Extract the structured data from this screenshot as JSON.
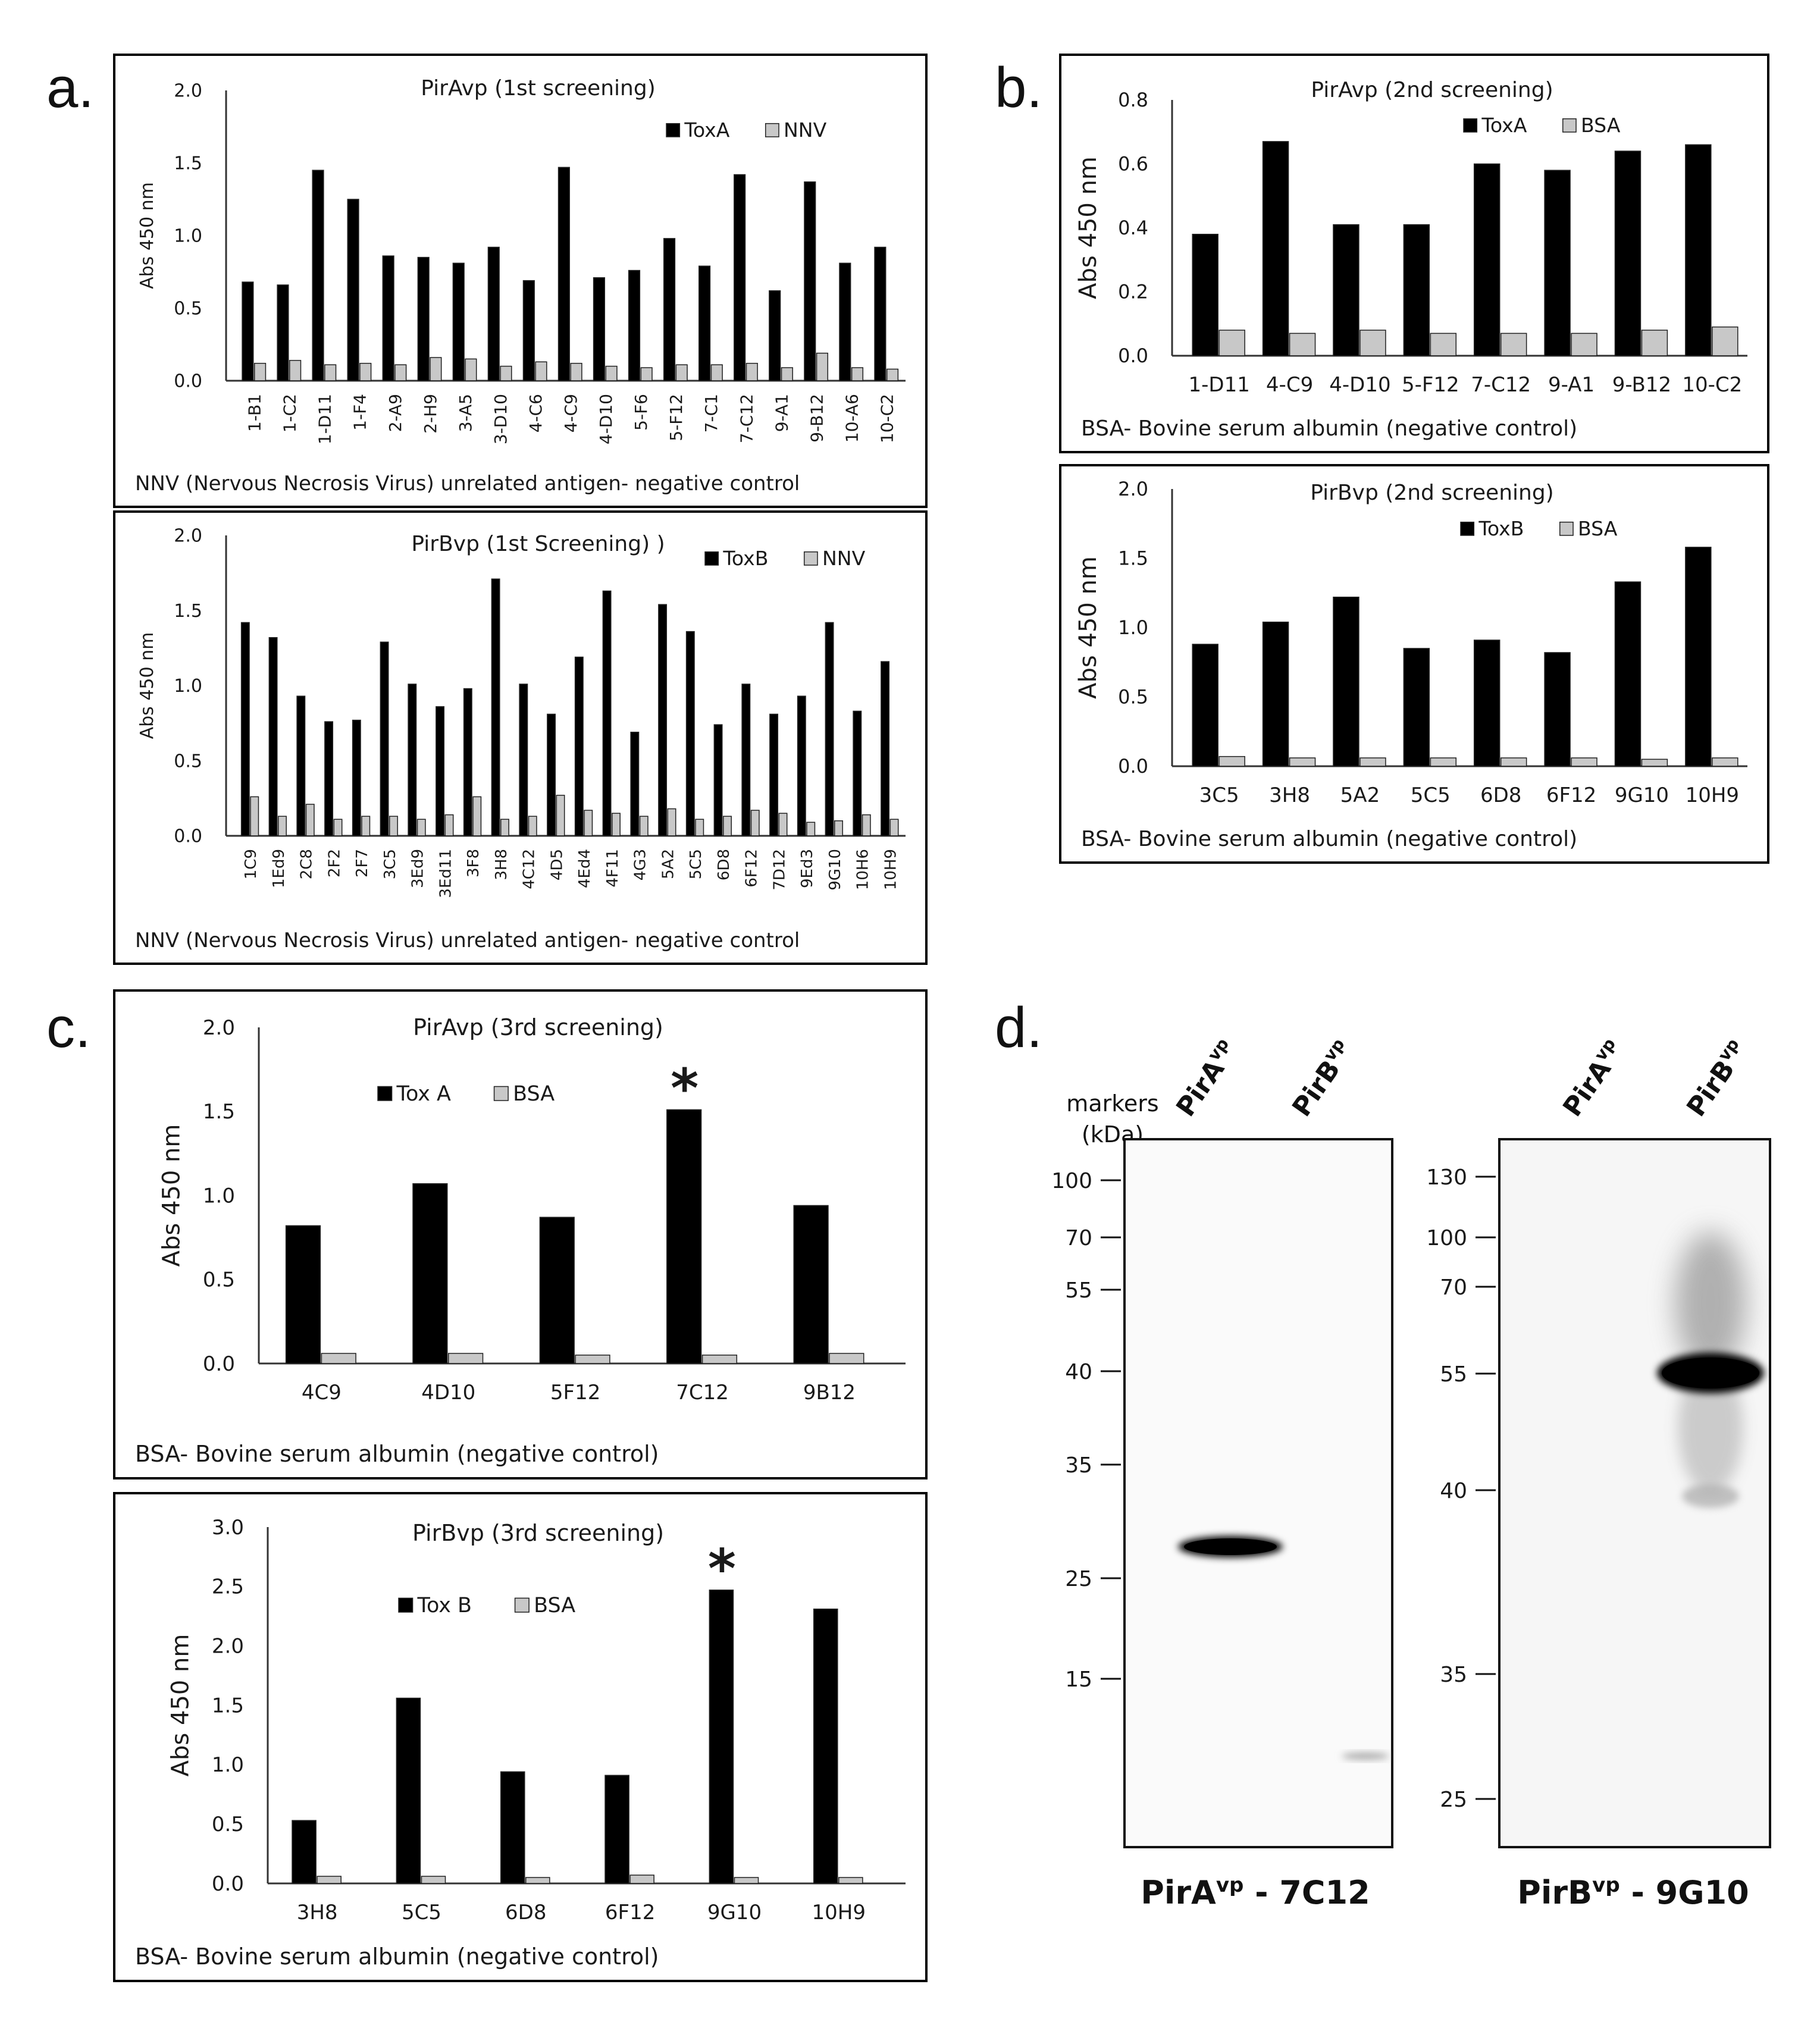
{
  "panel_labels": {
    "a": "a.",
    "b": "b.",
    "c": "c.",
    "d": "d."
  },
  "colors": {
    "primary": "#000000",
    "control": "#c8c8c8",
    "frame": "#000000",
    "text": "#1a1a1a"
  },
  "chart_data": [
    {
      "id": "a1",
      "panel": "a",
      "type": "bar",
      "title": "PirAvp (1st screening)",
      "ylabel": "Abs 450 nm",
      "xlabel": "",
      "ylim": [
        0,
        2.0
      ],
      "yticks": [
        "0.0",
        "0.5",
        "1.0",
        "1.5",
        "2.0"
      ],
      "categories": [
        "1-B1",
        "1-C2",
        "1-D11",
        "1-F4",
        "2-A9",
        "2-H9",
        "3-A5",
        "3-D10",
        "4-C6",
        "4-C9",
        "4-D10",
        "5-F6",
        "5-F12",
        "7-C1",
        "7-C12",
        "9-A1",
        "9-B12",
        "10-A6",
        "10-C2"
      ],
      "series": [
        {
          "name": "ToxA",
          "values": [
            0.68,
            0.66,
            1.45,
            1.25,
            0.86,
            0.85,
            0.81,
            0.92,
            0.69,
            1.47,
            0.71,
            0.76,
            0.98,
            0.79,
            1.42,
            0.62,
            1.37,
            0.81,
            0.92
          ]
        },
        {
          "name": "NNV",
          "values": [
            0.12,
            0.14,
            0.11,
            0.12,
            0.11,
            0.16,
            0.15,
            0.1,
            0.13,
            0.12,
            0.1,
            0.09,
            0.11,
            0.11,
            0.12,
            0.09,
            0.19,
            0.09,
            0.08
          ]
        }
      ],
      "note": "NNV (Nervous Necrosis Virus) unrelated antigen- negative control"
    },
    {
      "id": "a2",
      "panel": "a",
      "type": "bar",
      "title": "PirBvp (1st Screening) )",
      "ylabel": "Abs 450 nm",
      "xlabel": "",
      "ylim": [
        0,
        2.0
      ],
      "yticks": [
        "0.0",
        "0.5",
        "1.0",
        "1.5",
        "2.0"
      ],
      "categories": [
        "1C9",
        "1Ed9",
        "2C8",
        "2F2",
        "2F7",
        "3C5",
        "3Ed9",
        "3Ed11",
        "3F8",
        "3H8",
        "4C12",
        "4D5",
        "4Ed4",
        "4F11",
        "4G3",
        "5A2",
        "5C5",
        "6D8",
        "6F12",
        "7D12",
        "9Ed3",
        "9G10",
        "10H6",
        "10H9"
      ],
      "series": [
        {
          "name": "ToxB",
          "values": [
            1.42,
            1.32,
            0.93,
            0.76,
            0.77,
            1.29,
            1.01,
            0.86,
            0.98,
            1.71,
            1.01,
            0.81,
            1.19,
            1.63,
            0.69,
            1.54,
            1.36,
            0.74,
            1.01,
            0.81,
            0.93,
            1.42,
            0.83,
            1.16
          ]
        },
        {
          "name": "NNV",
          "values": [
            0.26,
            0.13,
            0.21,
            0.11,
            0.13,
            0.13,
            0.11,
            0.14,
            0.26,
            0.11,
            0.13,
            0.27,
            0.17,
            0.15,
            0.13,
            0.18,
            0.11,
            0.13,
            0.17,
            0.15,
            0.09,
            0.1,
            0.14,
            0.11
          ]
        }
      ],
      "note": "NNV (Nervous Necrosis Virus) unrelated antigen- negative control"
    },
    {
      "id": "b1",
      "panel": "b",
      "type": "bar",
      "title": "PirAvp  (2nd screening)",
      "ylabel": "Abs 450 nm",
      "xlabel": "",
      "ylim": [
        0,
        0.8
      ],
      "yticks": [
        "0.0",
        "0.2",
        "0.4",
        "0.6",
        "0.8"
      ],
      "categories": [
        "1-D11",
        "4-C9",
        "4-D10",
        "5-F12",
        "7-C12",
        "9-A1",
        "9-B12",
        "10-C2"
      ],
      "series": [
        {
          "name": "ToxA",
          "values": [
            0.38,
            0.67,
            0.41,
            0.41,
            0.6,
            0.58,
            0.64,
            0.66
          ]
        },
        {
          "name": "BSA",
          "values": [
            0.08,
            0.07,
            0.08,
            0.07,
            0.07,
            0.07,
            0.08,
            0.09
          ]
        }
      ],
      "note": "BSA- Bovine serum albumin (negative control)"
    },
    {
      "id": "b2",
      "panel": "b",
      "type": "bar",
      "title": "PirBvp  (2nd screening)",
      "ylabel": "Abs 450 nm",
      "xlabel": "",
      "ylim": [
        0,
        2.0
      ],
      "yticks": [
        "0.0",
        "0.5",
        "1.0",
        "1.5",
        "2.0"
      ],
      "categories": [
        "3C5",
        "3H8",
        "5A2",
        "5C5",
        "6D8",
        "6F12",
        "9G10",
        "10H9"
      ],
      "series": [
        {
          "name": "ToxB",
          "values": [
            0.88,
            1.04,
            1.22,
            0.85,
            0.91,
            0.82,
            1.33,
            1.58
          ]
        },
        {
          "name": "BSA",
          "values": [
            0.07,
            0.06,
            0.06,
            0.06,
            0.06,
            0.06,
            0.05,
            0.06
          ]
        }
      ],
      "note": "BSA- Bovine serum albumin (negative control)"
    },
    {
      "id": "c1",
      "panel": "c",
      "type": "bar",
      "title": "PirAvp  (3rd screening)",
      "ylabel": "Abs 450 nm",
      "xlabel": "",
      "ylim": [
        0,
        2.0
      ],
      "yticks": [
        "0.0",
        "0.5",
        "1.0",
        "1.5",
        "2.0"
      ],
      "categories": [
        "4C9",
        "4D10",
        "5F12",
        "7C12",
        "9B12"
      ],
      "series": [
        {
          "name": "Tox A",
          "values": [
            0.82,
            1.07,
            0.87,
            1.51,
            0.94
          ]
        },
        {
          "name": "BSA",
          "values": [
            0.06,
            0.06,
            0.05,
            0.05,
            0.06
          ]
        }
      ],
      "annotations": [
        {
          "category": "7C12",
          "text": "*"
        }
      ],
      "note": "BSA- Bovine serum albumin (negative control)"
    },
    {
      "id": "c2",
      "panel": "c",
      "type": "bar",
      "title": "PirBvp  (3rd screening)",
      "ylabel": "Abs 450 nm",
      "xlabel": "",
      "ylim": [
        0,
        3.0
      ],
      "yticks": [
        "0.0",
        "0.5",
        "1.0",
        "1.5",
        "2.0",
        "2.5",
        "3.0"
      ],
      "categories": [
        "3H8",
        "5C5",
        "6D8",
        "6F12",
        "9G10",
        "10H9"
      ],
      "series": [
        {
          "name": "Tox B",
          "values": [
            0.53,
            1.56,
            0.94,
            0.91,
            2.47,
            2.31
          ]
        },
        {
          "name": "BSA",
          "values": [
            0.06,
            0.06,
            0.05,
            0.07,
            0.05,
            0.05
          ]
        }
      ],
      "annotations": [
        {
          "category": "9G10",
          "text": "*"
        }
      ],
      "note": "BSA- Bovine serum albumin (negative control)"
    }
  ],
  "western": {
    "markers_label": "markers",
    "markers_unit": "(kDa)",
    "blot1": {
      "lanes": [
        "PirA",
        "PirB"
      ],
      "lane_sup": "vp",
      "markers": [
        "100",
        "70",
        "55",
        "40",
        "35",
        "25",
        "15"
      ],
      "caption_main": "PirA",
      "caption_sup": "vp",
      "caption_rest": " - 7C12"
    },
    "blot2": {
      "lanes": [
        "PirA",
        "PirB"
      ],
      "lane_sup": "vp",
      "markers": [
        "130",
        "100",
        "70",
        "55",
        "40",
        "35",
        "25"
      ],
      "caption_main": "PirB",
      "caption_sup": "vp",
      "caption_rest": " - 9G10"
    }
  }
}
